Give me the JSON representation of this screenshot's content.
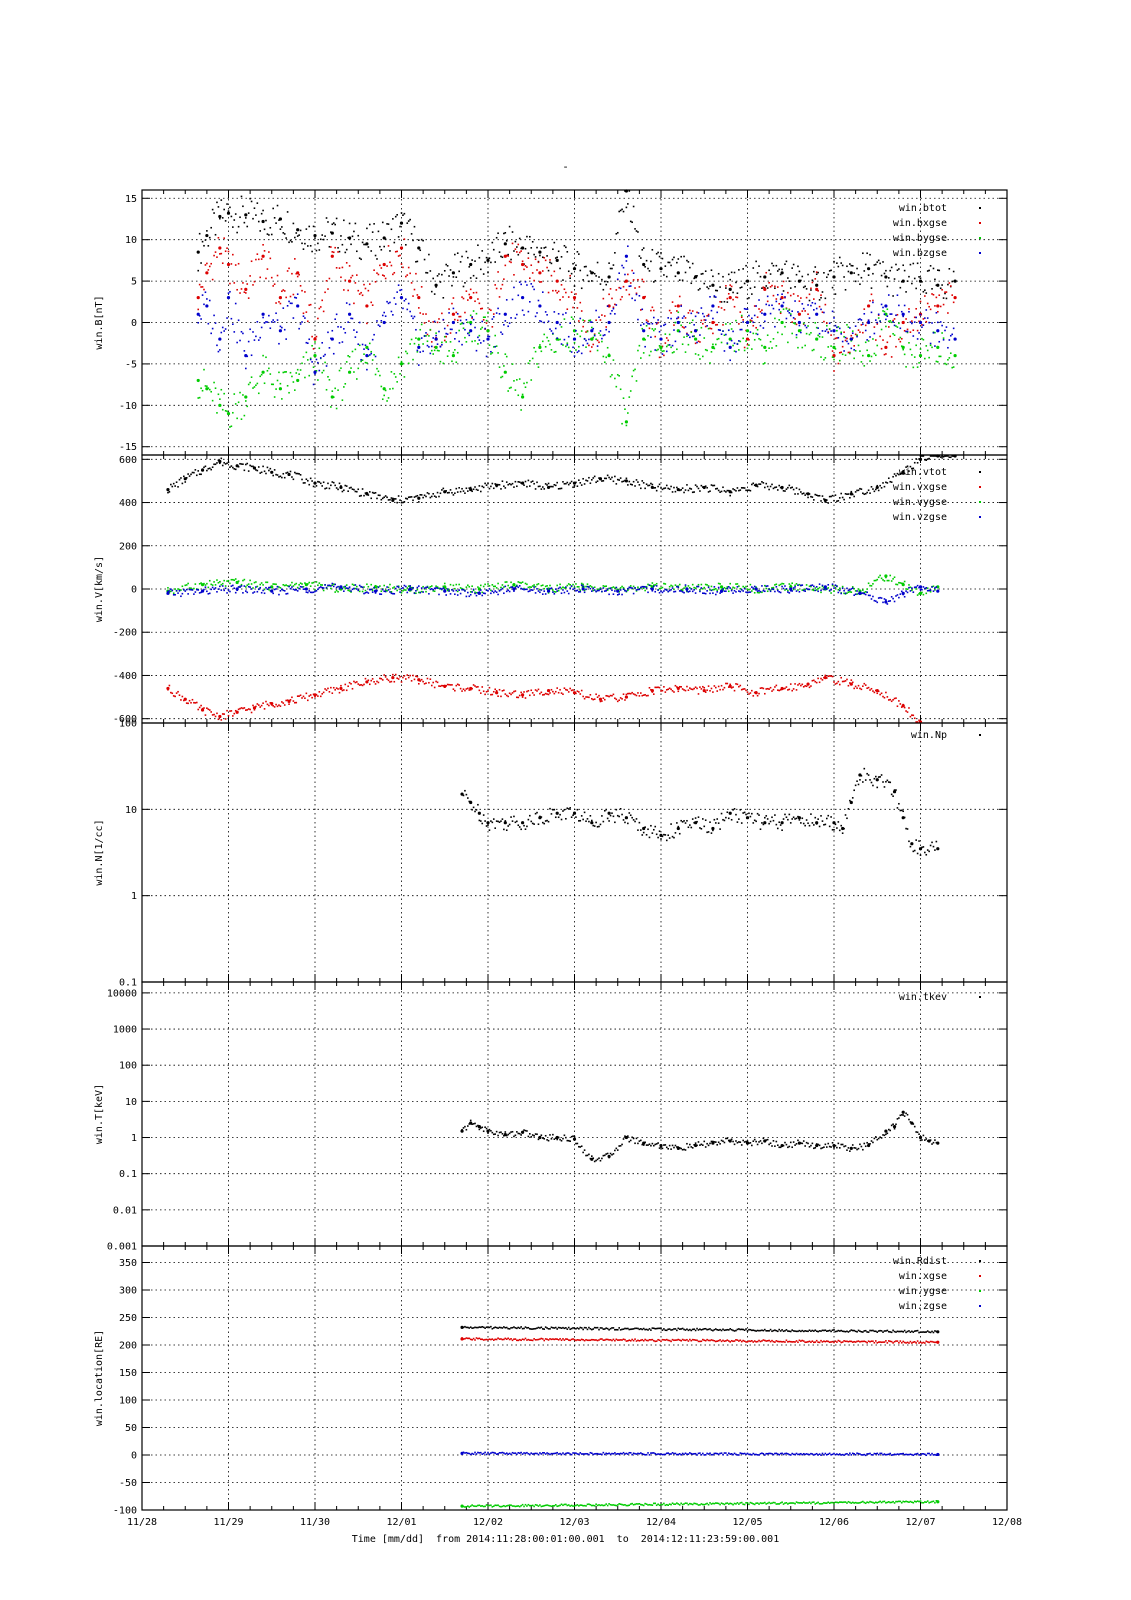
{
  "figure": {
    "title": "-",
    "footer": "Time [mm/dd]  from 2014:11:28:00:01:00.001  to  2014:12:11:23:59:00.001",
    "x_tick_labels": [
      "11/28",
      "11/29",
      "11/30",
      "12/01",
      "12/02",
      "12/03",
      "12/04",
      "12/05",
      "12/06",
      "12/07",
      "12/08"
    ],
    "xlim": [
      0,
      10
    ]
  },
  "chart_data": [
    {
      "type": "scatter",
      "ylabel": "win.B[nT]",
      "yscale": "linear",
      "ylim": [
        -16,
        16
      ],
      "yticks": [
        -15,
        -10,
        -5,
        0,
        5,
        10,
        15
      ],
      "legend_position": "top-right",
      "grid": true,
      "series": [
        {
          "name": "win.btot",
          "color": "#000000",
          "x": [
            0.65,
            0.75,
            0.9,
            1.0,
            1.2,
            1.4,
            1.6,
            1.8,
            2.0,
            2.2,
            2.4,
            2.6,
            2.8,
            3.0,
            3.2,
            3.4,
            3.6,
            3.8,
            4.0,
            4.2,
            4.4,
            4.6,
            4.8,
            5.0,
            5.2,
            5.4,
            5.6,
            5.8,
            6.0,
            6.2,
            6.4,
            6.6,
            6.8,
            7.0,
            7.2,
            7.4,
            7.6,
            7.8,
            8.0,
            8.2,
            8.4,
            8.6,
            8.8,
            9.0,
            9.2,
            9.4
          ],
          "y": [
            8.5,
            10.5,
            12.8,
            13.2,
            13.0,
            12.2,
            12.5,
            11.2,
            10.5,
            10.8,
            10.2,
            9.5,
            10.2,
            12.0,
            9.0,
            4.5,
            6.0,
            7.0,
            7.5,
            9.5,
            9.0,
            8.5,
            7.5,
            6.5,
            6.0,
            5.5,
            16.0,
            7.0,
            6.5,
            6.0,
            5.5,
            4.5,
            4.0,
            5.0,
            5.5,
            6.0,
            5.0,
            4.5,
            5.5,
            6.0,
            6.5,
            5.5,
            5.0,
            5.0,
            4.5,
            5.0
          ]
        },
        {
          "name": "win.bxgse",
          "color": "#dd0000",
          "x": [
            0.65,
            0.75,
            0.9,
            1.0,
            1.2,
            1.4,
            1.6,
            1.8,
            2.0,
            2.2,
            2.4,
            2.6,
            2.8,
            3.0,
            3.2,
            3.4,
            3.6,
            3.8,
            4.0,
            4.2,
            4.4,
            4.6,
            4.8,
            5.0,
            5.2,
            5.4,
            5.6,
            5.8,
            6.0,
            6.2,
            6.4,
            6.6,
            6.8,
            7.0,
            7.2,
            7.4,
            7.6,
            7.8,
            8.0,
            8.2,
            8.4,
            8.6,
            8.8,
            9.0,
            9.2,
            9.4
          ],
          "y": [
            3.0,
            6.0,
            9.0,
            7.0,
            4.0,
            8.0,
            3.0,
            6.0,
            -2.0,
            8.0,
            5.0,
            2.0,
            7.0,
            9.0,
            3.0,
            -2.0,
            1.0,
            3.0,
            -1.0,
            8.0,
            7.0,
            6.0,
            5.0,
            3.0,
            -2.0,
            2.0,
            5.0,
            3.0,
            -3.0,
            2.0,
            -1.0,
            0.0,
            3.0,
            -2.0,
            4.0,
            3.0,
            1.0,
            4.0,
            -4.0,
            -2.0,
            2.0,
            -3.0,
            0.0,
            1.0,
            2.0,
            3.0
          ]
        },
        {
          "name": "win.bygse",
          "color": "#00cc00",
          "x": [
            0.65,
            0.75,
            0.9,
            1.0,
            1.2,
            1.4,
            1.6,
            1.8,
            2.0,
            2.2,
            2.4,
            2.6,
            2.8,
            3.0,
            3.2,
            3.4,
            3.6,
            3.8,
            4.0,
            4.2,
            4.4,
            4.6,
            4.8,
            5.0,
            5.2,
            5.4,
            5.6,
            5.8,
            6.0,
            6.2,
            6.4,
            6.6,
            6.8,
            7.0,
            7.2,
            7.4,
            7.6,
            7.8,
            8.0,
            8.2,
            8.4,
            8.6,
            8.8,
            9.0,
            9.2,
            9.4
          ],
          "y": [
            -7.0,
            -8.0,
            -10.0,
            -11.0,
            -9.0,
            -6.0,
            -8.0,
            -7.0,
            -4.0,
            -9.0,
            -6.0,
            -3.0,
            -8.0,
            -5.0,
            -2.0,
            -3.0,
            -4.0,
            0.0,
            -1.0,
            -6.0,
            -9.0,
            -3.0,
            -2.0,
            -1.0,
            -2.0,
            -4.0,
            -12.0,
            -2.0,
            -3.0,
            -1.0,
            -2.0,
            -3.0,
            -2.0,
            -1.0,
            -3.0,
            0.0,
            -1.0,
            -2.0,
            -3.0,
            -2.0,
            -4.0,
            1.0,
            -3.0,
            -4.0,
            -3.0,
            -4.0
          ]
        },
        {
          "name": "win.bzgse",
          "color": "#0000cc",
          "x": [
            0.65,
            0.75,
            0.9,
            1.0,
            1.2,
            1.4,
            1.6,
            1.8,
            2.0,
            2.2,
            2.4,
            2.6,
            2.8,
            3.0,
            3.2,
            3.4,
            3.6,
            3.8,
            4.0,
            4.2,
            4.4,
            4.6,
            4.8,
            5.0,
            5.2,
            5.4,
            5.6,
            5.8,
            6.0,
            6.2,
            6.4,
            6.6,
            6.8,
            7.0,
            7.2,
            7.4,
            7.6,
            7.8,
            8.0,
            8.2,
            8.4,
            8.6,
            8.8,
            9.0,
            9.2,
            9.4
          ],
          "y": [
            1.0,
            2.0,
            -2.0,
            3.0,
            -4.0,
            1.0,
            -1.0,
            2.0,
            -6.0,
            -2.0,
            1.0,
            -4.0,
            0.0,
            3.0,
            -3.0,
            -2.0,
            0.0,
            -1.0,
            -2.0,
            1.0,
            3.0,
            2.0,
            0.0,
            -2.0,
            -1.0,
            0.0,
            8.0,
            -1.0,
            -2.0,
            0.0,
            -1.0,
            2.0,
            -3.0,
            0.0,
            1.0,
            2.0,
            0.0,
            1.0,
            -1.0,
            -2.0,
            0.0,
            2.0,
            1.0,
            0.0,
            -1.0,
            -2.0
          ]
        }
      ]
    },
    {
      "type": "scatter",
      "ylabel": "win.V[km/s]",
      "yscale": "linear",
      "ylim": [
        -620,
        620
      ],
      "yticks": [
        -600,
        -400,
        -200,
        0,
        200,
        400,
        600
      ],
      "legend_position": "top-right",
      "grid": true,
      "series": [
        {
          "name": "win.vtot",
          "color": "#000000",
          "x": [
            0.3,
            0.5,
            0.7,
            0.9,
            1.1,
            1.3,
            1.5,
            1.7,
            2.0,
            2.3,
            2.6,
            2.9,
            3.2,
            3.5,
            3.8,
            4.1,
            4.4,
            4.7,
            5.0,
            5.3,
            5.6,
            5.9,
            6.2,
            6.5,
            6.8,
            7.1,
            7.4,
            7.7,
            7.9,
            8.2,
            8.5,
            8.8,
            9.0,
            9.2,
            9.4
          ],
          "y": [
            460,
            510,
            550,
            590,
            570,
            560,
            540,
            530,
            490,
            470,
            440,
            410,
            420,
            450,
            460,
            480,
            490,
            470,
            490,
            510,
            500,
            470,
            460,
            470,
            450,
            480,
            470,
            440,
            410,
            440,
            470,
            540,
            600,
            620,
            620
          ]
        },
        {
          "name": "win.vxgse",
          "color": "#dd0000",
          "x": [
            0.3,
            0.5,
            0.7,
            0.9,
            1.1,
            1.3,
            1.5,
            1.7,
            2.0,
            2.3,
            2.6,
            2.9,
            3.2,
            3.5,
            3.8,
            4.1,
            4.4,
            4.7,
            5.0,
            5.3,
            5.6,
            5.9,
            6.2,
            6.5,
            6.8,
            7.1,
            7.4,
            7.7,
            7.9,
            8.2,
            8.5,
            8.8,
            9.0
          ],
          "y": [
            -460,
            -510,
            -560,
            -590,
            -570,
            -550,
            -530,
            -520,
            -490,
            -460,
            -430,
            -410,
            -420,
            -450,
            -460,
            -480,
            -490,
            -470,
            -480,
            -510,
            -500,
            -470,
            -460,
            -470,
            -450,
            -480,
            -460,
            -440,
            -410,
            -440,
            -470,
            -540,
            -620
          ]
        },
        {
          "name": "win.vygse",
          "color": "#00cc00",
          "x": [
            0.3,
            0.7,
            1.1,
            1.5,
            1.9,
            2.3,
            2.7,
            3.1,
            3.5,
            3.9,
            4.3,
            4.7,
            5.1,
            5.5,
            5.9,
            6.3,
            6.7,
            7.1,
            7.5,
            7.9,
            8.3,
            8.6,
            8.8,
            9.0,
            9.2
          ],
          "y": [
            -10,
            20,
            30,
            10,
            20,
            0,
            10,
            -5,
            10,
            0,
            20,
            0,
            10,
            -5,
            10,
            0,
            10,
            0,
            10,
            0,
            -10,
            60,
            20,
            -20,
            10
          ]
        },
        {
          "name": "win.vzgse",
          "color": "#0000cc",
          "x": [
            0.3,
            0.7,
            1.1,
            1.5,
            1.9,
            2.3,
            2.7,
            3.1,
            3.5,
            3.9,
            4.3,
            4.7,
            5.1,
            5.5,
            5.9,
            6.3,
            6.7,
            7.1,
            7.5,
            7.9,
            8.3,
            8.6,
            8.8,
            9.0,
            9.2
          ],
          "y": [
            -20,
            -10,
            0,
            -10,
            0,
            10,
            -10,
            0,
            -10,
            -20,
            0,
            -10,
            0,
            -10,
            0,
            0,
            -10,
            0,
            0,
            10,
            -20,
            -60,
            -20,
            10,
            -10
          ]
        }
      ]
    },
    {
      "type": "scatter",
      "ylabel": "win.N[1/cc]",
      "yscale": "log",
      "ylim": [
        0.1,
        100
      ],
      "yticks": [
        0.1,
        1,
        10,
        100
      ],
      "ytick_labels": [
        "0.1",
        "1",
        "10",
        "100"
      ],
      "legend_position": "top-right",
      "grid": true,
      "series": [
        {
          "name": "win.Np",
          "color": "#000000",
          "x": [
            3.7,
            3.8,
            3.9,
            4.0,
            4.2,
            4.4,
            4.6,
            4.8,
            5.0,
            5.2,
            5.4,
            5.6,
            5.8,
            6.0,
            6.2,
            6.4,
            6.6,
            6.8,
            7.0,
            7.2,
            7.4,
            7.6,
            7.8,
            8.0,
            8.1,
            8.2,
            8.3,
            8.5,
            8.7,
            8.8,
            8.9,
            9.0,
            9.2
          ],
          "y": [
            15,
            12,
            9,
            7,
            7,
            7,
            8,
            9,
            9,
            7,
            9,
            8,
            6,
            5,
            6,
            7,
            6,
            9,
            8,
            7,
            7,
            8,
            7,
            7,
            6,
            12,
            25,
            22,
            16,
            8,
            4,
            3.5,
            3.5
          ]
        }
      ]
    },
    {
      "type": "scatter",
      "ylabel": "win.T[keV]",
      "yscale": "log",
      "ylim": [
        0.001,
        20000
      ],
      "yticks": [
        0.001,
        0.01,
        0.1,
        1,
        10,
        100,
        1000,
        10000
      ],
      "ytick_labels": [
        "0.001",
        "0.01",
        "0.1",
        "1",
        "10",
        "100",
        "1000",
        "10000"
      ],
      "legend_position": "top-right",
      "grid": true,
      "series": [
        {
          "name": "win.tkev",
          "color": "#000000",
          "x": [
            3.7,
            3.8,
            3.9,
            4.0,
            4.2,
            4.4,
            4.6,
            4.8,
            5.0,
            5.2,
            5.4,
            5.6,
            5.8,
            6.0,
            6.2,
            6.4,
            6.6,
            6.8,
            7.0,
            7.2,
            7.4,
            7.6,
            7.8,
            8.0,
            8.2,
            8.4,
            8.6,
            8.7,
            8.8,
            8.9,
            9.0,
            9.1,
            9.2
          ],
          "y": [
            1.5,
            2.5,
            2.0,
            1.5,
            1.2,
            1.4,
            1.0,
            1.0,
            0.9,
            0.25,
            0.3,
            1.0,
            0.7,
            0.6,
            0.5,
            0.6,
            0.7,
            0.8,
            0.7,
            0.8,
            0.6,
            0.7,
            0.6,
            0.6,
            0.5,
            0.6,
            1.5,
            2.0,
            5.0,
            2.5,
            1.0,
            0.8,
            0.7
          ]
        }
      ]
    },
    {
      "type": "scatter",
      "ylabel": "win.location[RE]",
      "yscale": "linear",
      "ylim": [
        -100,
        380
      ],
      "yticks": [
        -100,
        -50,
        0,
        50,
        100,
        150,
        200,
        250,
        300,
        350
      ],
      "legend_position": "top-right",
      "grid": true,
      "series": [
        {
          "name": "win.Rdist",
          "color": "#000000",
          "x": [
            3.7,
            9.2
          ],
          "y": [
            232,
            224
          ]
        },
        {
          "name": "win.xgse",
          "color": "#dd0000",
          "x": [
            3.7,
            9.2
          ],
          "y": [
            211,
            205
          ]
        },
        {
          "name": "win.ygse",
          "color": "#00cc00",
          "x": [
            3.7,
            9.2
          ],
          "y": [
            -93,
            -85
          ]
        },
        {
          "name": "win.zgse",
          "color": "#0000cc",
          "x": [
            3.7,
            9.2
          ],
          "y": [
            3,
            1
          ]
        }
      ]
    }
  ]
}
